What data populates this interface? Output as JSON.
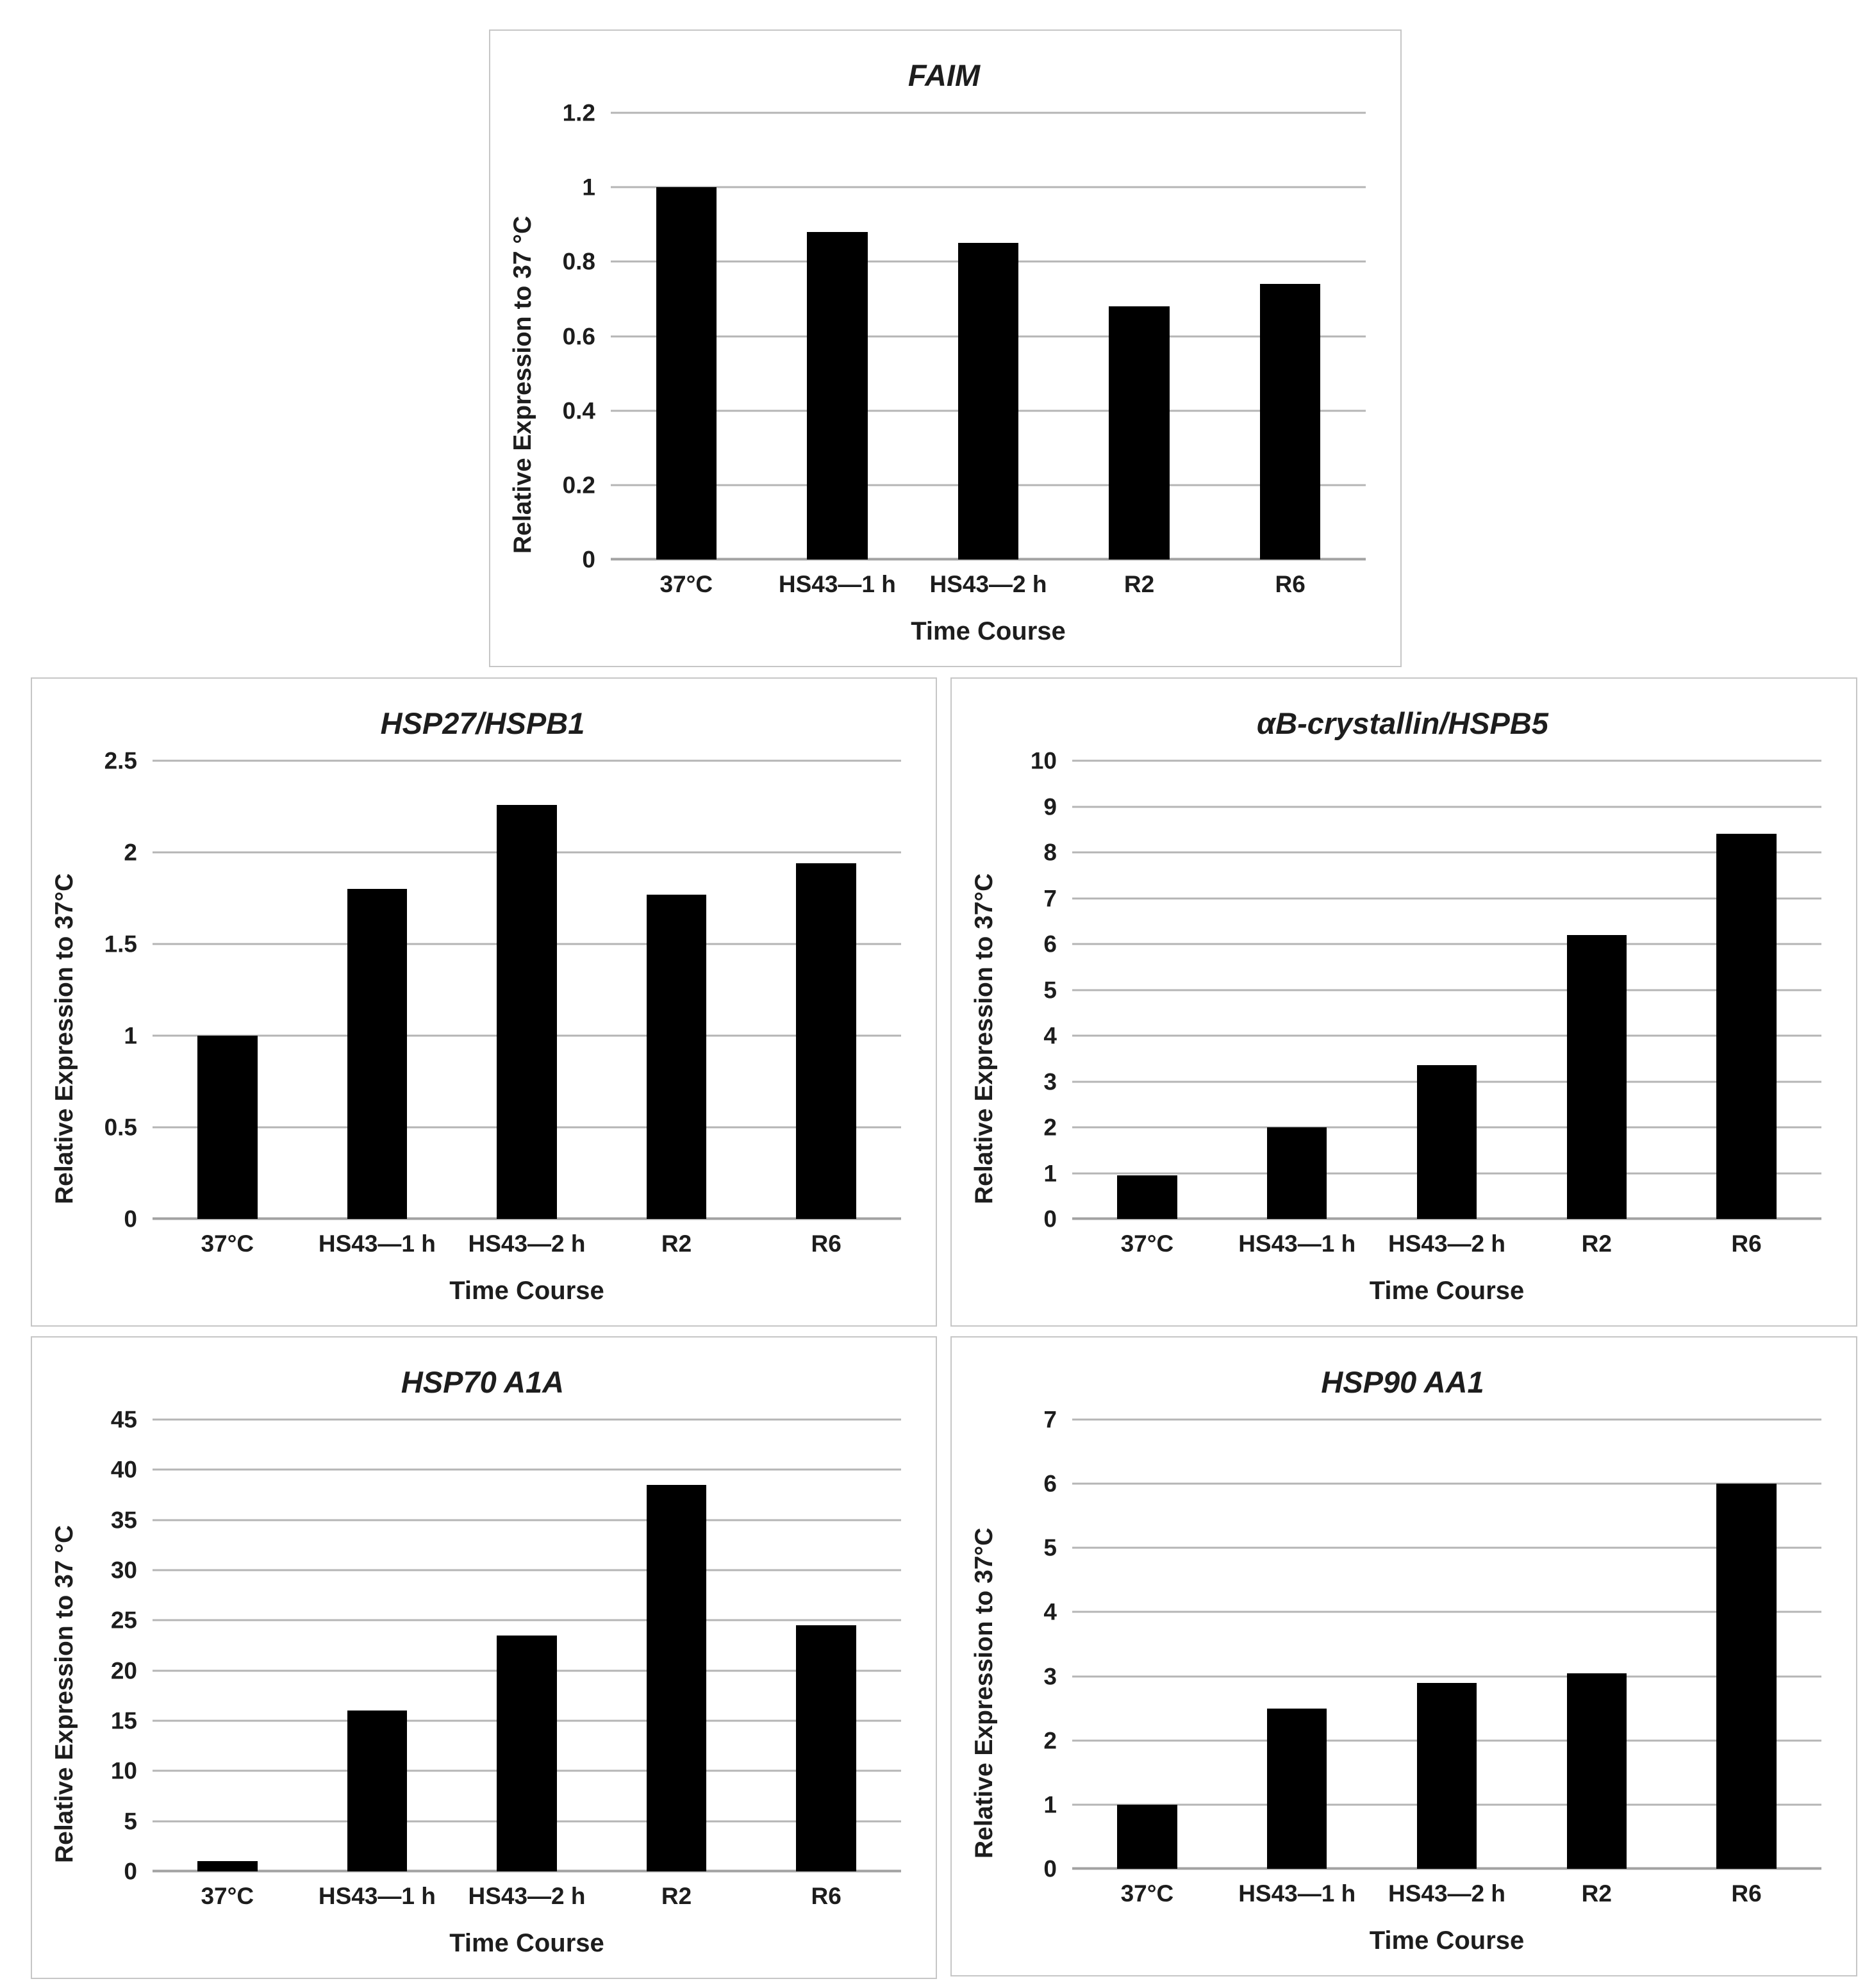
{
  "colors": {
    "bar": "#000000",
    "gridline": "#b5b5b5",
    "baseline": "#a2a2a2",
    "text": "#1d1d1d",
    "box_border": "#c6c6c6",
    "background": "#ffffff"
  },
  "chart_data": [
    {
      "type": "bar",
      "title": "FAIM",
      "ylabel": "Relative Expression to 37 °C",
      "xlabel": "Time Course",
      "categories": [
        "37°C",
        "HS43—1 h",
        "HS43—2 h",
        "R2",
        "R6"
      ],
      "values": [
        1.0,
        0.88,
        0.85,
        0.68,
        0.74
      ],
      "ylim": [
        0,
        1.2
      ],
      "yticks": [
        "0",
        "0.2",
        "0.4",
        "0.6",
        "0.8",
        "1",
        "1.2"
      ],
      "grid": true,
      "legend": null,
      "bar_color": "#000000"
    },
    {
      "type": "bar",
      "title": "HSP27/HSPB1",
      "ylabel": "Relative Expression to 37°C",
      "xlabel": "Time Course",
      "categories": [
        "37°C",
        "HS43—1 h",
        "HS43—2 h",
        "R2",
        "R6"
      ],
      "values": [
        1.0,
        1.8,
        2.26,
        1.77,
        1.94
      ],
      "ylim": [
        0,
        2.5
      ],
      "yticks": [
        "0",
        "0.5",
        "1",
        "1.5",
        "2",
        "2.5"
      ],
      "grid": true,
      "legend": null,
      "bar_color": "#000000"
    },
    {
      "type": "bar",
      "title": "αB-crystallin/HSPB5",
      "ylabel": "Relative Expression to 37°C",
      "xlabel": "Time Course",
      "categories": [
        "37°C",
        "HS43—1 h",
        "HS43—2 h",
        "R2",
        "R6"
      ],
      "values": [
        0.95,
        2.0,
        3.35,
        6.2,
        8.4
      ],
      "ylim": [
        0,
        10
      ],
      "yticks": [
        "0",
        "1",
        "2",
        "3",
        "4",
        "5",
        "6",
        "7",
        "8",
        "9",
        "10"
      ],
      "grid": true,
      "legend": null,
      "bar_color": "#000000"
    },
    {
      "type": "bar",
      "title": "HSP70 A1A",
      "ylabel": "Relative Expression to 37 °C",
      "xlabel": "Time Course",
      "categories": [
        "37°C",
        "HS43—1 h",
        "HS43—2 h",
        "R2",
        "R6"
      ],
      "values": [
        1.0,
        16,
        23.5,
        38.5,
        24.5
      ],
      "ylim": [
        0,
        45
      ],
      "yticks": [
        "0",
        "5",
        "10",
        "15",
        "20",
        "25",
        "30",
        "35",
        "40",
        "45"
      ],
      "grid": true,
      "legend": null,
      "bar_color": "#000000"
    },
    {
      "type": "bar",
      "title": "HSP90 AA1",
      "ylabel": "Relative Expression to 37°C",
      "xlabel": "Time Course",
      "categories": [
        "37°C",
        "HS43—1 h",
        "HS43—2 h",
        "R2",
        "R6"
      ],
      "values": [
        1.0,
        2.5,
        2.9,
        3.05,
        6.0
      ],
      "ylim": [
        0,
        7
      ],
      "yticks": [
        "0",
        "1",
        "2",
        "3",
        "4",
        "5",
        "6",
        "7"
      ],
      "grid": true,
      "legend": null,
      "bar_color": "#000000"
    }
  ]
}
